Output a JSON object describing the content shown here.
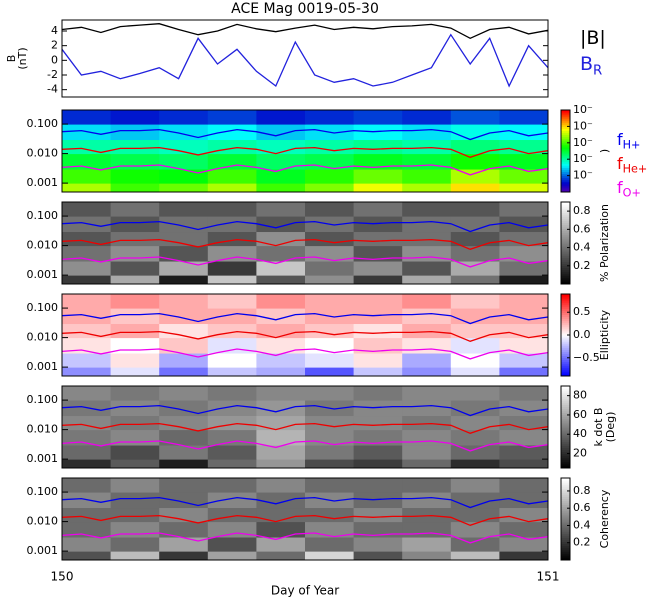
{
  "chart_data": [
    {
      "type": "line",
      "title": "ACE Mag 0019-05-30",
      "ylabel": [
        "B",
        "(nT)"
      ],
      "x": [
        150,
        150.04,
        150.08,
        150.12,
        150.16,
        150.2,
        150.24,
        150.28,
        150.32,
        150.36,
        150.4,
        150.44,
        150.48,
        150.52,
        150.56,
        150.6,
        150.64,
        150.68,
        150.72,
        150.76,
        150.8,
        150.84,
        150.88,
        150.92,
        150.96,
        151
      ],
      "ylim": [
        -5,
        5.5
      ],
      "yticks": [
        -4,
        -2,
        0,
        2,
        4
      ],
      "series": [
        {
          "name": "|B|",
          "color": "#000000",
          "values": [
            4.2,
            4.5,
            3.8,
            4.6,
            4.8,
            5.0,
            4.2,
            3.5,
            4.0,
            4.9,
            4.3,
            3.9,
            4.4,
            4.8,
            4.2,
            4.5,
            4.3,
            4.6,
            4.7,
            4.9,
            4.4,
            3.0,
            4.2,
            4.5,
            3.6,
            4.1
          ]
        },
        {
          "name": "B",
          "subscript": "R",
          "color": "#2222dd",
          "values": [
            1.5,
            -2.0,
            -1.5,
            -2.5,
            -1.8,
            -1.0,
            -2.5,
            3.0,
            -0.5,
            1.5,
            -1.5,
            -3.5,
            2.5,
            -2.0,
            -3.0,
            -2.5,
            -3.5,
            -3.0,
            -2.0,
            -1.0,
            3.5,
            -0.5,
            3.0,
            -3.5,
            2.0,
            -1.0
          ]
        }
      ]
    },
    {
      "type": "heatmap",
      "colormap": "rainbow",
      "colorbar_label": [
        ")"
      ],
      "clim": [
        -5,
        0
      ],
      "cticks": [
        {
          "value": 0,
          "label": "10⁻"
        },
        {
          "value": -1,
          "label": "10⁻"
        },
        {
          "value": -2,
          "label": "10⁻"
        },
        {
          "value": -3,
          "label": "10⁻"
        },
        {
          "value": -4,
          "label": "10⁻"
        }
      ],
      "ylim": [
        0.0005,
        0.3
      ],
      "log_y": true,
      "yticks": [
        {
          "value": 0.001,
          "label": "0.001"
        },
        {
          "value": 0.01,
          "label": "0.010"
        },
        {
          "value": 0.1,
          "label": "0.100"
        }
      ],
      "x_edges": [
        150,
        150.1,
        150.2,
        150.3,
        150.4,
        150.5,
        150.6,
        150.7,
        150.8,
        150.9,
        151
      ],
      "y_edges": [
        0.0005,
        0.001,
        0.003,
        0.01,
        0.03,
        0.1,
        0.3
      ],
      "z": [
        [
          -1.5,
          -2,
          -1.8,
          -1.5,
          -2,
          -1.7,
          -1.2,
          -1.5,
          -1,
          -1.3
        ],
        [
          -2,
          -2.2,
          -2.3,
          -2,
          -2.4,
          -2.1,
          -1.8,
          -2,
          -1.5,
          -1.8
        ],
        [
          -2.5,
          -2.6,
          -2.7,
          -2.5,
          -2.7,
          -2.6,
          -2.4,
          -2.5,
          -2.2,
          -2.4
        ],
        [
          -3,
          -3,
          -3.1,
          -3,
          -3.1,
          -3,
          -2.9,
          -3,
          -2.8,
          -2.9
        ],
        [
          -3.5,
          -3.6,
          -3.5,
          -3.4,
          -3.6,
          -3.5,
          -3.4,
          -3.5,
          -3.3,
          -3.4
        ],
        [
          -4.3,
          -4.4,
          -4.3,
          -4.2,
          -4.4,
          -4.3,
          -4.2,
          -4.3,
          -4.1,
          -4.2
        ]
      ],
      "series": [
        {
          "name": "f",
          "subscript": "H+",
          "color": "#0000ee",
          "values": [
            0.055,
            0.06,
            0.045,
            0.06,
            0.06,
            0.065,
            0.05,
            0.035,
            0.05,
            0.065,
            0.055,
            0.04,
            0.06,
            0.065,
            0.05,
            0.06,
            0.055,
            0.06,
            0.06,
            0.065,
            0.055,
            0.03,
            0.05,
            0.06,
            0.04,
            0.05
          ]
        },
        {
          "name": "f",
          "subscript": "He+",
          "color": "#ee0000",
          "values": [
            0.014,
            0.015,
            0.011,
            0.015,
            0.015,
            0.016,
            0.0125,
            0.009,
            0.0125,
            0.016,
            0.014,
            0.01,
            0.015,
            0.016,
            0.0125,
            0.015,
            0.014,
            0.015,
            0.015,
            0.016,
            0.014,
            0.0075,
            0.0125,
            0.015,
            0.01,
            0.0125
          ]
        },
        {
          "name": "f",
          "subscript": "O+",
          "color": "#ee00ee",
          "values": [
            0.0034,
            0.0038,
            0.0028,
            0.0038,
            0.0038,
            0.0041,
            0.0031,
            0.0022,
            0.0031,
            0.0041,
            0.0034,
            0.0025,
            0.0038,
            0.0041,
            0.0031,
            0.0038,
            0.0034,
            0.0038,
            0.0038,
            0.0041,
            0.0034,
            0.0019,
            0.0031,
            0.0038,
            0.0025,
            0.0031
          ]
        }
      ]
    },
    {
      "type": "heatmap",
      "colormap": "gray",
      "colorbar_label": [
        "% Polarization"
      ],
      "clim": [
        0,
        0.9
      ],
      "cticks": [
        0.2,
        0.4,
        0.6,
        0.8
      ],
      "ylim": [
        0.0005,
        0.3
      ],
      "log_y": true,
      "yticks": [
        {
          "value": 0.001,
          "label": "0.001"
        },
        {
          "value": 0.01,
          "label": "0.010"
        },
        {
          "value": 0.1,
          "label": "0.100"
        }
      ],
      "x_edges": [
        150,
        150.1,
        150.2,
        150.3,
        150.4,
        150.5,
        150.6,
        150.7,
        150.8,
        150.9,
        151
      ],
      "y_edges": [
        0.0005,
        0.001,
        0.003,
        0.01,
        0.03,
        0.1,
        0.3
      ],
      "z": [
        [
          0.2,
          0.6,
          0.1,
          0.7,
          0.3,
          0.5,
          0.2,
          0.6,
          0.4,
          0.1
        ],
        [
          0.5,
          0.3,
          0.6,
          0.2,
          0.7,
          0.4,
          0.5,
          0.3,
          0.6,
          0.4
        ],
        [
          0.4,
          0.5,
          0.3,
          0.5,
          0.4,
          0.5,
          0.3,
          0.5,
          0.4,
          0.5
        ],
        [
          0.3,
          0.4,
          0.4,
          0.3,
          0.5,
          0.3,
          0.4,
          0.4,
          0.3,
          0.4
        ],
        [
          0.4,
          0.3,
          0.4,
          0.4,
          0.3,
          0.4,
          0.3,
          0.4,
          0.4,
          0.3
        ],
        [
          0.3,
          0.4,
          0.3,
          0.3,
          0.4,
          0.3,
          0.4,
          0.3,
          0.3,
          0.4
        ]
      ]
    },
    {
      "type": "heatmap",
      "colormap": "bwr",
      "colorbar_label": [
        "Ellipticity"
      ],
      "clim": [
        -0.9,
        0.9
      ],
      "cticks": [
        {
          "value": -0.5,
          "label": "−0.5"
        },
        {
          "value": 0,
          "label": "0.0"
        },
        0.5
      ],
      "ylim": [
        0.0005,
        0.3
      ],
      "log_y": true,
      "yticks": [
        {
          "value": 0.001,
          "label": "0.001"
        },
        {
          "value": 0.01,
          "label": "0.010"
        },
        {
          "value": 0.1,
          "label": "0.100"
        }
      ],
      "x_edges": [
        150,
        150.1,
        150.2,
        150.3,
        150.4,
        150.5,
        150.6,
        150.7,
        150.8,
        150.9,
        151
      ],
      "y_edges": [
        0.0005,
        0.001,
        0.003,
        0.01,
        0.03,
        0.1,
        0.3
      ],
      "z": [
        [
          -0.4,
          -0.1,
          -0.5,
          -0.2,
          -0.3,
          -0.6,
          -0.2,
          -0.4,
          -0.1,
          -0.5
        ],
        [
          -0.2,
          0.1,
          -0.3,
          0.0,
          -0.2,
          -0.1,
          0.1,
          -0.3,
          0.0,
          -0.2
        ],
        [
          0.1,
          0.0,
          0.2,
          -0.1,
          0.1,
          0.0,
          0.2,
          0.1,
          -0.1,
          0.1
        ],
        [
          0.2,
          0.3,
          0.1,
          0.2,
          0.3,
          0.2,
          0.1,
          0.3,
          0.2,
          0.2
        ],
        [
          0.3,
          0.2,
          0.3,
          0.3,
          0.2,
          0.3,
          0.3,
          0.2,
          0.3,
          0.3
        ],
        [
          0.3,
          0.4,
          0.3,
          0.2,
          0.4,
          0.3,
          0.3,
          0.4,
          0.2,
          0.3
        ]
      ]
    },
    {
      "type": "heatmap",
      "colormap": "gray",
      "colorbar_label": [
        "k dot B",
        "(Deg)"
      ],
      "clim": [
        5,
        90
      ],
      "cticks": [
        20,
        40,
        60,
        80
      ],
      "ylim": [
        0.0005,
        0.3
      ],
      "log_y": true,
      "yticks": [
        {
          "value": 0.001,
          "label": "0.001"
        },
        {
          "value": 0.01,
          "label": "0.010"
        },
        {
          "value": 0.1,
          "label": "0.100"
        }
      ],
      "x_edges": [
        150,
        150.1,
        150.2,
        150.3,
        150.4,
        150.5,
        150.6,
        150.7,
        150.8,
        150.9,
        151
      ],
      "y_edges": [
        0.0005,
        0.001,
        0.003,
        0.01,
        0.03,
        0.1,
        0.3
      ],
      "z": [
        [
          20,
          35,
          15,
          40,
          55,
          30,
          25,
          40,
          20,
          30
        ],
        [
          40,
          30,
          45,
          35,
          60,
          45,
          35,
          50,
          40,
          35
        ],
        [
          45,
          50,
          40,
          45,
          65,
          50,
          45,
          50,
          45,
          50
        ],
        [
          50,
          45,
          50,
          55,
          60,
          50,
          50,
          45,
          50,
          45
        ],
        [
          45,
          50,
          45,
          50,
          55,
          45,
          50,
          50,
          45,
          50
        ],
        [
          50,
          45,
          50,
          45,
          50,
          50,
          45,
          50,
          50,
          45
        ]
      ]
    },
    {
      "type": "heatmap",
      "colormap": "gray",
      "colorbar_label": [
        "Coherency"
      ],
      "clim": [
        0,
        0.95
      ],
      "cticks": [
        0.2,
        0.4,
        0.6,
        0.8
      ],
      "ylim": [
        0.0005,
        0.3
      ],
      "log_y": true,
      "yticks": [
        {
          "value": 0.001,
          "label": "0.001"
        },
        {
          "value": 0.01,
          "label": "0.010"
        },
        {
          "value": 0.1,
          "label": "0.100"
        }
      ],
      "x_edges": [
        150,
        150.1,
        150.2,
        150.3,
        150.4,
        150.5,
        150.6,
        150.7,
        150.8,
        150.9,
        151
      ],
      "y_edges": [
        0.0005,
        0.001,
        0.003,
        0.01,
        0.03,
        0.1,
        0.3
      ],
      "z": [
        [
          0.3,
          0.7,
          0.2,
          0.6,
          0.4,
          0.8,
          0.3,
          0.5,
          0.7,
          0.2
        ],
        [
          0.5,
          0.4,
          0.6,
          0.3,
          0.6,
          0.4,
          0.5,
          0.6,
          0.4,
          0.5
        ],
        [
          0.4,
          0.5,
          0.4,
          0.5,
          0.3,
          0.5,
          0.4,
          0.4,
          0.5,
          0.4
        ],
        [
          0.4,
          0.4,
          0.5,
          0.4,
          0.4,
          0.4,
          0.5,
          0.4,
          0.4,
          0.5
        ],
        [
          0.5,
          0.4,
          0.4,
          0.5,
          0.4,
          0.5,
          0.4,
          0.5,
          0.4,
          0.4
        ],
        [
          0.4,
          0.5,
          0.4,
          0.4,
          0.5,
          0.4,
          0.4,
          0.4,
          0.5,
          0.4
        ]
      ],
      "xlim": [
        150,
        151
      ],
      "xticks": [
        150,
        151
      ],
      "xlabel": "Day of Year"
    }
  ]
}
